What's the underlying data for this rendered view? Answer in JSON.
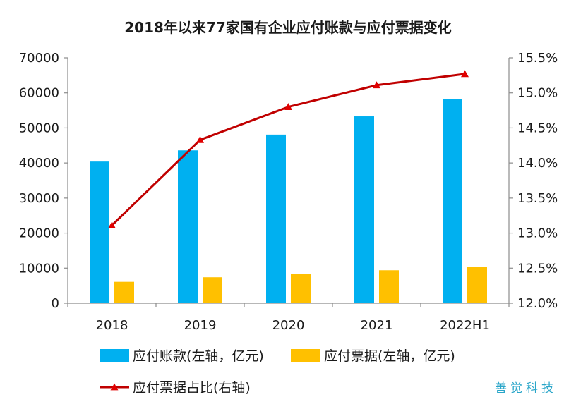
{
  "chart_data": {
    "type": "bar",
    "title": "2018年以来77家国有企业应付账款与应付票据变化",
    "categories": [
      "2018",
      "2019",
      "2020",
      "2021",
      "2022H1"
    ],
    "series": [
      {
        "name": "应付账款(左轴，亿元)",
        "type": "bar",
        "axis": "left",
        "color": "#00b0f0",
        "values": [
          40400,
          43600,
          48100,
          53300,
          58300
        ]
      },
      {
        "name": "应付票据(左轴，亿元)",
        "type": "bar",
        "axis": "left",
        "color": "#ffc000",
        "values": [
          6100,
          7400,
          8400,
          9400,
          10300
        ]
      },
      {
        "name": "应付票据占比(右轴)",
        "type": "line",
        "axis": "right",
        "color": "#c00000",
        "marker": "triangle",
        "values": [
          0.1311,
          0.1433,
          0.148,
          0.1511,
          0.1527
        ]
      }
    ],
    "left_axis": {
      "min": 0,
      "max": 70000,
      "step": 10000,
      "tick_labels": [
        "0",
        "10000",
        "20000",
        "30000",
        "40000",
        "50000",
        "60000",
        "70000"
      ]
    },
    "right_axis": {
      "min": 0.12,
      "max": 0.155,
      "step": 0.005,
      "tick_labels": [
        "12.0%",
        "12.5%",
        "13.0%",
        "13.5%",
        "14.0%",
        "14.5%",
        "15.0%",
        "15.5%"
      ]
    },
    "grid": false,
    "legend_position": "bottom"
  },
  "watermark": "善觉科技"
}
